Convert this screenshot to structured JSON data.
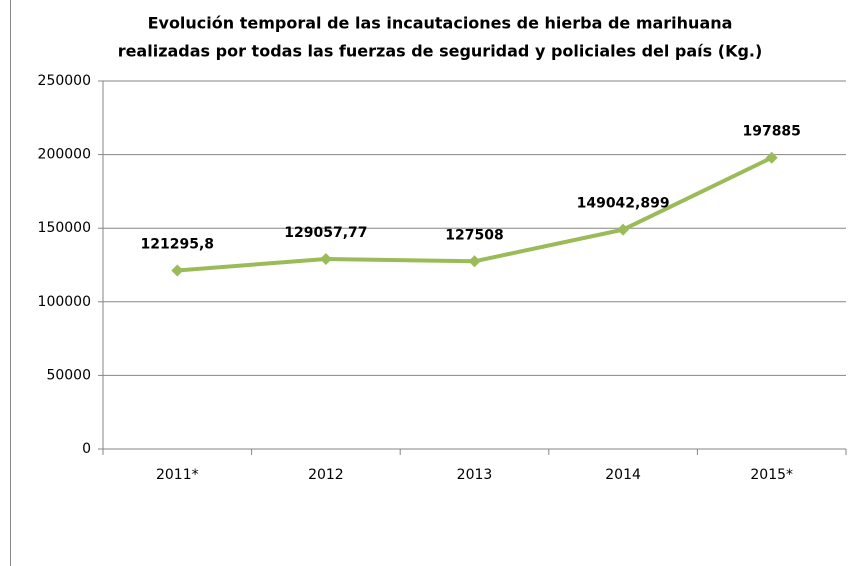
{
  "chart_data": {
    "type": "line",
    "title": [
      "Evolución temporal de las incautaciones de hierba de marihuana",
      "realizadas por todas las fuerzas de seguridad y policiales del país (Kg.)"
    ],
    "categories": [
      "2011*",
      "2012",
      "2013",
      "2014",
      "2015*"
    ],
    "values": [
      121295.8,
      129057.77,
      127508,
      149042.899,
      197885
    ],
    "value_labels": [
      "121295,8",
      "129057,77",
      "127508",
      "149042,899",
      "197885"
    ],
    "color": "#9bbb59",
    "ylim": [
      0,
      250000
    ],
    "yticks": [
      0,
      50000,
      100000,
      150000,
      200000,
      250000
    ],
    "grid": true
  }
}
